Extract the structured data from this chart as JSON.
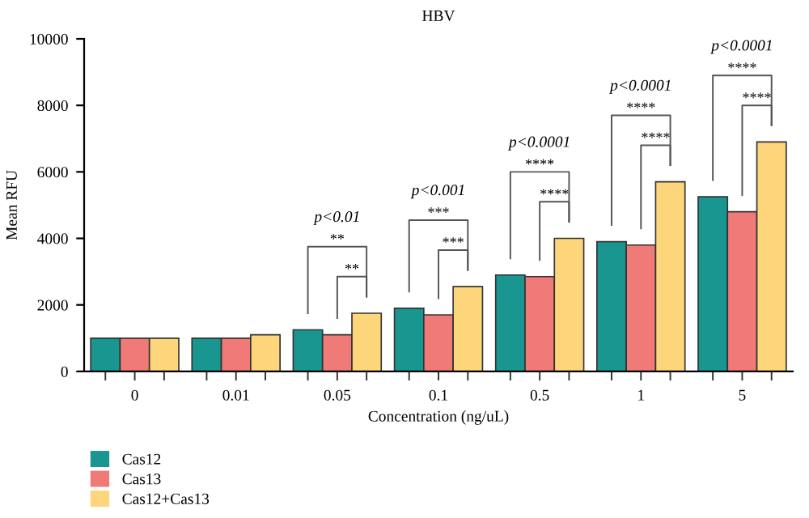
{
  "chart_data": {
    "type": "bar",
    "title": "HBV",
    "xlabel": "Concentration (ng/uL)",
    "ylabel": "Mean RFU",
    "categories": [
      "0",
      "0.01",
      "0.05",
      "0.1",
      "0.5",
      "1",
      "5"
    ],
    "series": [
      {
        "name": "Cas12",
        "color": "#1a9690",
        "values": [
          1000,
          1000,
          1250,
          1900,
          2900,
          3900,
          5250
        ]
      },
      {
        "name": "Cas13",
        "color": "#f07a78",
        "values": [
          1000,
          1000,
          1100,
          1700,
          2850,
          3800,
          4800
        ]
      },
      {
        "name": "Cas12+Cas13",
        "color": "#fdd57a",
        "values": [
          1000,
          1100,
          1750,
          2550,
          4000,
          5700,
          6900
        ]
      }
    ],
    "ylim": [
      0,
      10000
    ],
    "yticks": [
      0,
      2000,
      4000,
      6000,
      8000,
      10000
    ],
    "grid": false,
    "legend": "bottom left",
    "annotations": [
      "p<0.01",
      "**",
      "**",
      "p<0.001",
      "***",
      "***",
      "p<0.0001",
      "****",
      "****",
      "p<0.0001",
      "****",
      "****",
      "p<0.0001",
      "****",
      "****"
    ]
  }
}
